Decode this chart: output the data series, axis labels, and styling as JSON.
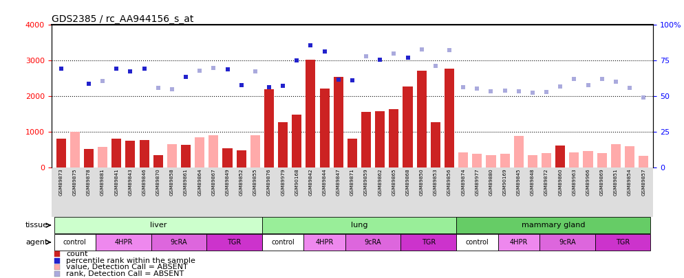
{
  "title": "GDS2385 / rc_AA944156_s_at",
  "samples": [
    "GSM89873",
    "GSM89875",
    "GSM89878",
    "GSM89881",
    "GSM89841",
    "GSM89843",
    "GSM89846",
    "GSM89870",
    "GSM89858",
    "GSM89861",
    "GSM89864",
    "GSM89867",
    "GSM89849",
    "GSM89852",
    "GSM89855",
    "GSM89876",
    "GSM89979",
    "GSM90168",
    "GSM89842",
    "GSM89844",
    "GSM89847",
    "GSM89871",
    "GSM89859",
    "GSM89862",
    "GSM89865",
    "GSM89868",
    "GSM89850",
    "GSM89853",
    "GSM89856",
    "GSM89874",
    "GSM89977",
    "GSM89880",
    "GSM90169",
    "GSM89845",
    "GSM89848",
    "GSM89872",
    "GSM89860",
    "GSM89963",
    "GSM89966",
    "GSM89869",
    "GSM89851",
    "GSM89854",
    "GSM89857"
  ],
  "count_values": [
    820,
    null,
    530,
    null,
    810,
    750,
    780,
    360,
    null,
    640,
    null,
    null,
    540,
    490,
    null,
    2200,
    1280,
    1490,
    3020,
    2220,
    2540,
    820,
    1560,
    1590,
    1640,
    2280,
    2720,
    1270,
    2780,
    null,
    null,
    null,
    null,
    null,
    null,
    null,
    620,
    null,
    null,
    null,
    null,
    null,
    null
  ],
  "absent_value": [
    null,
    1000,
    null,
    580,
    null,
    null,
    null,
    null,
    660,
    null,
    860,
    910,
    null,
    null,
    910,
    null,
    null,
    null,
    null,
    null,
    null,
    null,
    null,
    null,
    null,
    null,
    null,
    null,
    null,
    430,
    390,
    360,
    390,
    900,
    360,
    410,
    null,
    430,
    460,
    420,
    660,
    600,
    330
  ],
  "percentile_rank": [
    2780,
    null,
    2360,
    null,
    2780,
    2700,
    2780,
    null,
    null,
    2540,
    null,
    null,
    2750,
    2310,
    null,
    2250,
    2290,
    3010,
    3440,
    3260,
    2460,
    2450,
    null,
    3020,
    null,
    3080,
    null,
    null,
    null,
    null,
    null,
    null,
    null,
    null,
    null,
    null,
    null,
    null,
    null,
    null,
    null,
    null,
    null
  ],
  "absent_rank": [
    null,
    null,
    null,
    2440,
    null,
    null,
    null,
    2240,
    2200,
    null,
    2720,
    2800,
    null,
    null,
    2700,
    null,
    null,
    null,
    null,
    null,
    null,
    null,
    3120,
    null,
    3200,
    null,
    3320,
    2860,
    3290,
    2260,
    2210,
    2140,
    2160,
    2150,
    2110,
    2130,
    2280,
    2490,
    2310,
    2480,
    2410,
    2240,
    1960
  ],
  "tissues": [
    {
      "label": "liver",
      "start": 0,
      "end": 15,
      "color": "#ccffcc"
    },
    {
      "label": "lung",
      "start": 15,
      "end": 29,
      "color": "#99ee99"
    },
    {
      "label": "mammary gland",
      "start": 29,
      "end": 43,
      "color": "#66cc66"
    }
  ],
  "agents": [
    {
      "label": "control",
      "start": 0,
      "end": 3,
      "color": "#ffffff"
    },
    {
      "label": "4HPR",
      "start": 3,
      "end": 7,
      "color": "#ee88ee"
    },
    {
      "label": "9cRA",
      "start": 7,
      "end": 11,
      "color": "#dd66dd"
    },
    {
      "label": "TGR",
      "start": 11,
      "end": 15,
      "color": "#cc33cc"
    },
    {
      "label": "control",
      "start": 15,
      "end": 18,
      "color": "#ffffff"
    },
    {
      "label": "4HPR",
      "start": 18,
      "end": 21,
      "color": "#ee88ee"
    },
    {
      "label": "9cRA",
      "start": 21,
      "end": 25,
      "color": "#dd66dd"
    },
    {
      "label": "TGR",
      "start": 25,
      "end": 29,
      "color": "#cc33cc"
    },
    {
      "label": "control",
      "start": 29,
      "end": 32,
      "color": "#ffffff"
    },
    {
      "label": "4HPR",
      "start": 32,
      "end": 35,
      "color": "#ee88ee"
    },
    {
      "label": "9cRA",
      "start": 35,
      "end": 39,
      "color": "#dd66dd"
    },
    {
      "label": "TGR",
      "start": 39,
      "end": 43,
      "color": "#cc33cc"
    }
  ],
  "ylim_left": [
    0,
    4000
  ],
  "ylim_right": [
    0,
    100
  ],
  "yticks_left": [
    0,
    1000,
    2000,
    3000,
    4000
  ],
  "yticks_right": [
    0,
    25,
    50,
    75,
    100
  ],
  "bar_color": "#cc2222",
  "absent_bar_color": "#ffaaaa",
  "rank_color": "#2222cc",
  "absent_rank_color": "#aaaadd",
  "legend_items": [
    {
      "color": "#cc2222",
      "label": "count"
    },
    {
      "color": "#2222cc",
      "label": "percentile rank within the sample"
    },
    {
      "color": "#ffaaaa",
      "label": "value, Detection Call = ABSENT"
    },
    {
      "color": "#aaaadd",
      "label": "rank, Detection Call = ABSENT"
    }
  ],
  "xticklabel_bg": "#dddddd"
}
